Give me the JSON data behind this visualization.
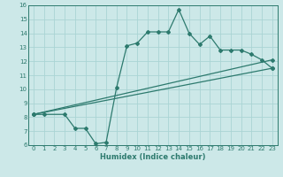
{
  "title": "",
  "xlabel": "Humidex (Indice chaleur)",
  "ylabel": "",
  "bg_color": "#cce8e8",
  "line_color": "#2d7a6e",
  "grid_color": "#aad4d4",
  "xlim": [
    -0.5,
    23.5
  ],
  "ylim": [
    6,
    16
  ],
  "xticks": [
    0,
    1,
    2,
    3,
    4,
    5,
    6,
    7,
    8,
    9,
    10,
    11,
    12,
    13,
    14,
    15,
    16,
    17,
    18,
    19,
    20,
    21,
    22,
    23
  ],
  "yticks": [
    6,
    7,
    8,
    9,
    10,
    11,
    12,
    13,
    14,
    15,
    16
  ],
  "line1_x": [
    0,
    1,
    3,
    4,
    5,
    6,
    7,
    8,
    9,
    10,
    11,
    12,
    13,
    14,
    15,
    16,
    17,
    18,
    19,
    20,
    21,
    22,
    23
  ],
  "line1_y": [
    8.2,
    8.2,
    8.2,
    7.2,
    7.2,
    6.1,
    6.2,
    10.1,
    13.1,
    13.3,
    14.1,
    14.1,
    14.1,
    15.7,
    14.0,
    13.2,
    13.8,
    12.8,
    12.8,
    12.8,
    12.5,
    12.1,
    11.5
  ],
  "line2_x": [
    0,
    23
  ],
  "line2_y": [
    8.2,
    12.1
  ],
  "line3_x": [
    0,
    23
  ],
  "line3_y": [
    8.2,
    11.5
  ],
  "marker": "D",
  "markersize": 2.0,
  "linewidth": 0.9,
  "tick_fontsize": 5.0,
  "xlabel_fontsize": 6.0
}
